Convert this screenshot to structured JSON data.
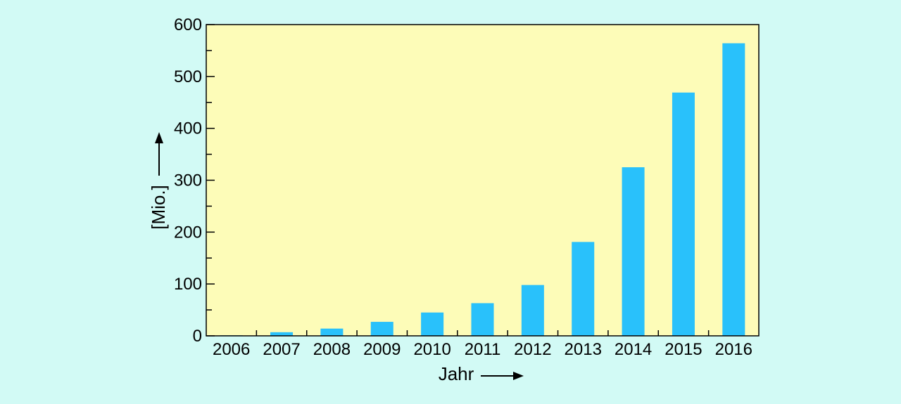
{
  "colors": {
    "page_background": "#d2faf5",
    "plot_background": "#fdfcb8",
    "bar_fill": "#29c1fb",
    "axis_color": "#000000"
  },
  "chart_data": {
    "type": "bar",
    "title": "",
    "categories": [
      "2006",
      "2007",
      "2008",
      "2009",
      "2010",
      "2011",
      "2012",
      "2013",
      "2014",
      "2015",
      "2016"
    ],
    "values": [
      1,
      7,
      14,
      27,
      45,
      63,
      98,
      181,
      325,
      469,
      564
    ],
    "xlabel": "Jahr",
    "ylabel": "[Mio.]",
    "ylim": [
      0,
      600
    ],
    "yticks": [
      0,
      100,
      200,
      300,
      400,
      500,
      600
    ],
    "y_minor_step": 50,
    "grid": false,
    "legend": "none",
    "axis_label_arrows": true
  }
}
